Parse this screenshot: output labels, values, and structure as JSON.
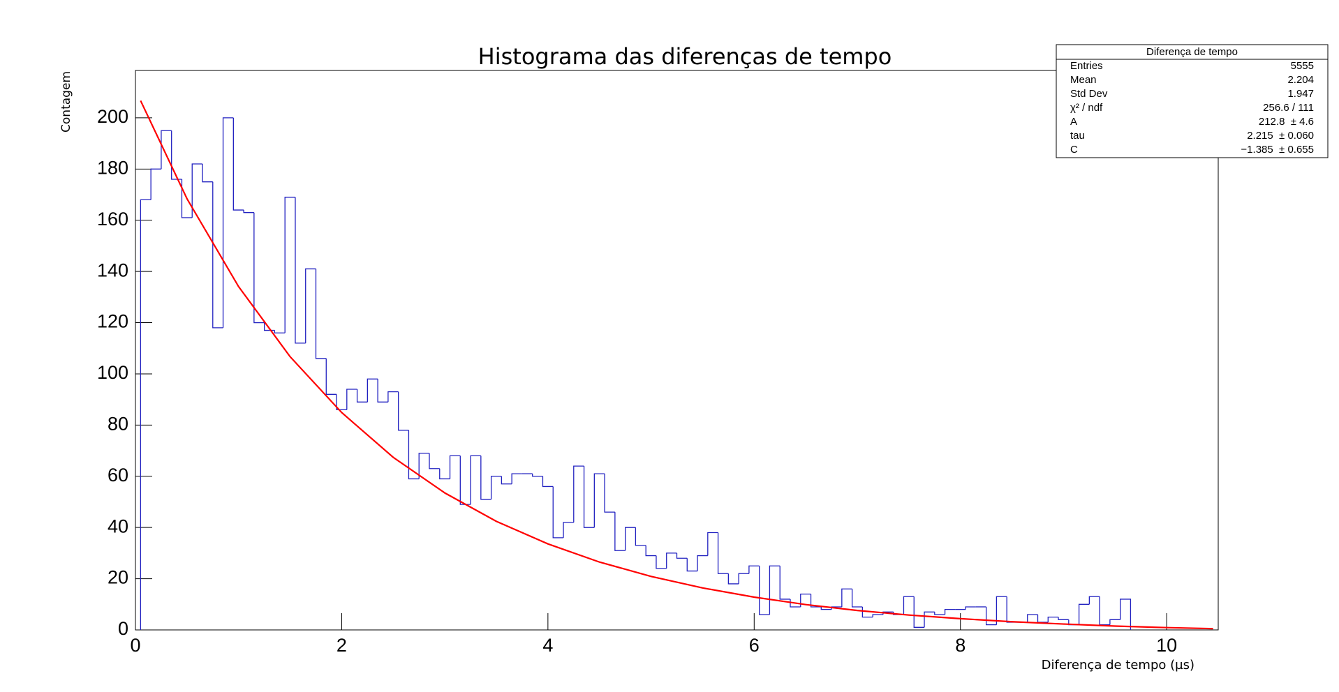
{
  "chart_data": {
    "type": "histogram",
    "title": "Histograma das diferenças de tempo",
    "xlabel": "Diferença de tempo (µs)",
    "ylabel": "Contagem",
    "color": "#2020c0",
    "bins": [
      0.05,
      0.15,
      0.25,
      0.35,
      0.45,
      0.55,
      0.65,
      0.75,
      0.85,
      0.95,
      1.05,
      1.15,
      1.25,
      1.35,
      1.45,
      1.55,
      1.65,
      1.75,
      1.85,
      1.95,
      2.05,
      2.15,
      2.25,
      2.35,
      2.45,
      2.55,
      2.65,
      2.75,
      2.85,
      2.95,
      3.05,
      3.15,
      3.25,
      3.35,
      3.45,
      3.55,
      3.65,
      3.75,
      3.85,
      3.95,
      4.05,
      4.15,
      4.25,
      4.35,
      4.45,
      4.55,
      4.65,
      4.75,
      4.85,
      4.95,
      5.05,
      5.15,
      5.25,
      5.35,
      5.45,
      5.55,
      5.65,
      5.75,
      5.85,
      5.95,
      6.05,
      6.15,
      6.25,
      6.35,
      6.45,
      6.55,
      6.65,
      6.75,
      6.85,
      6.95,
      7.05,
      7.15,
      7.25,
      7.35,
      7.45,
      7.55,
      7.65,
      7.75,
      7.85,
      7.95,
      8.05,
      8.15,
      8.25,
      8.35,
      8.45,
      8.55,
      8.65,
      8.75,
      8.85,
      8.95,
      9.05,
      9.15,
      9.25,
      9.35,
      9.45,
      9.55,
      9.65
    ],
    "values": [
      168,
      180,
      195,
      176,
      161,
      182,
      175,
      118,
      200,
      164,
      163,
      120,
      117,
      116,
      169,
      112,
      141,
      106,
      92,
      86,
      94,
      89,
      98,
      89,
      93,
      78,
      59,
      69,
      63,
      59,
      68,
      49,
      68,
      51,
      60,
      57,
      61,
      61,
      60,
      56,
      36,
      42,
      64,
      40,
      61,
      46,
      31,
      40,
      33,
      29,
      24,
      30,
      28,
      23,
      29,
      38,
      22,
      18,
      22,
      25,
      6,
      25,
      12,
      9,
      14,
      9,
      8,
      9,
      16,
      9,
      5,
      6,
      7,
      6,
      13,
      1,
      7,
      6,
      8,
      8,
      9,
      9,
      2,
      13,
      3,
      3,
      6,
      3,
      5,
      4,
      2,
      10,
      13,
      2,
      4,
      12
    ],
    "fit": {
      "color": "#ff0000",
      "x": [
        0.05,
        0.5,
        1.0,
        1.5,
        2.0,
        2.5,
        3.0,
        3.5,
        4.0,
        4.5,
        5.0,
        5.5,
        6.0,
        6.5,
        7.0,
        7.5,
        8.0,
        8.5,
        9.0,
        9.5,
        10.0,
        10.45
      ],
      "values": [
        206.7,
        168.4,
        134.1,
        106.7,
        84.9,
        67.4,
        53.5,
        42.4,
        33.6,
        26.5,
        20.9,
        16.4,
        12.8,
        9.9,
        7.6,
        5.8,
        4.4,
        3.2,
        2.3,
        1.5,
        0.9,
        0.5
      ]
    },
    "xlim": [
      0,
      10.5
    ],
    "ylim": [
      0,
      218.5
    ],
    "xticks": [
      0,
      2,
      4,
      6,
      8,
      10
    ],
    "yticks": [
      0,
      20,
      40,
      60,
      80,
      100,
      120,
      140,
      160,
      180,
      200
    ],
    "stats": {
      "title": "Diferença de tempo",
      "rows": [
        [
          "Entries",
          "5555"
        ],
        [
          "Mean",
          "2.204"
        ],
        [
          "Std Dev",
          "1.947"
        ],
        [
          "χ² / ndf",
          "256.6 / 111"
        ],
        [
          "A",
          "212.8  ± 4.6"
        ],
        [
          "tau",
          "2.215  ± 0.060"
        ],
        [
          "C",
          "−1.385  ± 0.655"
        ]
      ]
    }
  }
}
